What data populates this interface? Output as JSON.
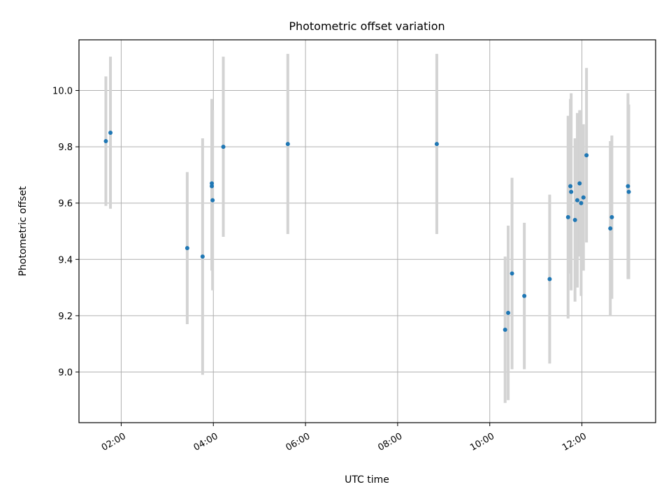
{
  "chart_data": {
    "type": "scatter",
    "title": "Photometric offset variation",
    "xlabel": "UTC time",
    "ylabel": "Photometric offset",
    "x_unit": "UTC time (HH:MM)",
    "xlim": [
      "01:05",
      "13:36"
    ],
    "ylim": [
      8.82,
      10.18
    ],
    "x_ticks": [
      "02:00",
      "04:00",
      "06:00",
      "08:00",
      "10:00",
      "12:00"
    ],
    "y_ticks": [
      "9.0",
      "9.2",
      "9.4",
      "9.6",
      "9.8",
      "10.0"
    ],
    "grid": true,
    "x_tick_labels_rotated": true,
    "colors": {
      "points": "#1f77b4",
      "error_bars": "#d3d3d3",
      "grid": "#b0b0b0"
    },
    "series": [
      {
        "points": [
          {
            "x": "01:40",
            "y": 9.82,
            "err": 0.23
          },
          {
            "x": "01:46",
            "y": 9.85,
            "err": 0.27
          },
          {
            "x": "03:26",
            "y": 9.44,
            "err": 0.27
          },
          {
            "x": "03:46",
            "y": 9.41,
            "err": 0.42
          },
          {
            "x": "03:58",
            "y": 9.67,
            "err": 0.3
          },
          {
            "x": "03:58",
            "y": 9.66,
            "err": 0.3
          },
          {
            "x": "03:59",
            "y": 9.61,
            "err": 0.32
          },
          {
            "x": "04:13",
            "y": 9.8,
            "err": 0.32
          },
          {
            "x": "05:37",
            "y": 9.81,
            "err": 0.32
          },
          {
            "x": "08:51",
            "y": 9.81,
            "err": 0.32
          },
          {
            "x": "10:20",
            "y": 9.15,
            "err": 0.26
          },
          {
            "x": "10:24",
            "y": 9.21,
            "err": 0.31
          },
          {
            "x": "10:29",
            "y": 9.35,
            "err": 0.34
          },
          {
            "x": "10:45",
            "y": 9.27,
            "err": 0.26
          },
          {
            "x": "11:18",
            "y": 9.33,
            "err": 0.3
          },
          {
            "x": "11:42",
            "y": 9.55,
            "err": 0.36
          },
          {
            "x": "11:45",
            "y": 9.66,
            "err": 0.31
          },
          {
            "x": "11:46",
            "y": 9.64,
            "err": 0.35
          },
          {
            "x": "11:51",
            "y": 9.54,
            "err": 0.29
          },
          {
            "x": "11:54",
            "y": 9.61,
            "err": 0.31
          },
          {
            "x": "11:57",
            "y": 9.67,
            "err": 0.26
          },
          {
            "x": "11:59",
            "y": 9.6,
            "err": 0.33
          },
          {
            "x": "12:02",
            "y": 9.62,
            "err": 0.26
          },
          {
            "x": "12:06",
            "y": 9.77,
            "err": 0.31
          },
          {
            "x": "12:37",
            "y": 9.51,
            "err": 0.31
          },
          {
            "x": "12:39",
            "y": 9.55,
            "err": 0.29
          },
          {
            "x": "13:00",
            "y": 9.66,
            "err": 0.33
          },
          {
            "x": "13:01",
            "y": 9.64,
            "err": 0.31
          }
        ]
      }
    ]
  }
}
